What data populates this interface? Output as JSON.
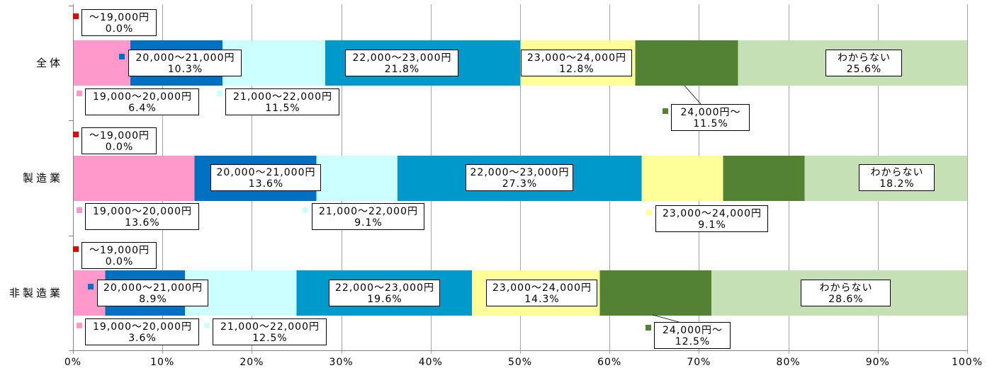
{
  "chart_data": {
    "type": "bar",
    "orientation": "horizontal",
    "stacking": "percent",
    "categories": [
      "全体",
      "製造業",
      "非製造業"
    ],
    "series": [
      {
        "name": "～19,000円",
        "color": "#e60000",
        "values": [
          0.0,
          0.0,
          0.0
        ]
      },
      {
        "name": "19,000～20,000円",
        "color": "#ff99cc",
        "values": [
          6.4,
          13.6,
          3.6
        ]
      },
      {
        "name": "20,000～21,000円",
        "color": "#0070c0",
        "values": [
          10.3,
          13.6,
          8.9
        ]
      },
      {
        "name": "21,000～22,000円",
        "color": "#ccffff",
        "values": [
          11.5,
          9.1,
          12.5
        ]
      },
      {
        "name": "22,000～23,000円",
        "color": "#0099cc",
        "values": [
          21.8,
          27.3,
          19.6
        ]
      },
      {
        "name": "23,000～24,000円",
        "color": "#ffff99",
        "values": [
          12.8,
          9.1,
          14.3
        ]
      },
      {
        "name": "24,000円～",
        "color": "#548235",
        "values": [
          11.5,
          9.1,
          12.5
        ]
      },
      {
        "name": "わからない",
        "color": "#c5e0b4",
        "values": [
          25.6,
          18.2,
          28.6
        ]
      }
    ],
    "xlim": [
      0,
      100
    ],
    "xticks": [
      0,
      10,
      20,
      30,
      40,
      50,
      60,
      70,
      80,
      90,
      100
    ],
    "xtick_labels": [
      "0%",
      "10%",
      "20%",
      "30%",
      "40%",
      "50%",
      "60%",
      "70%",
      "80%",
      "90%",
      "100%"
    ],
    "grid": true,
    "legend": "none"
  }
}
